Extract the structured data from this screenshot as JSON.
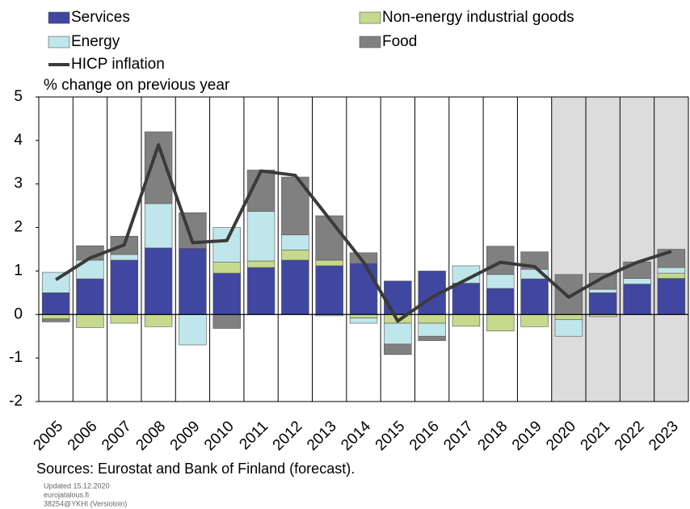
{
  "chart_data": {
    "type": "bar",
    "axis_label": "% change on previous year",
    "categories": [
      "2005",
      "2006",
      "2007",
      "2008",
      "2009",
      "2010",
      "2011",
      "2012",
      "2013",
      "2014",
      "2015",
      "2016",
      "2017",
      "2018",
      "2019",
      "2020",
      "2021",
      "2022",
      "2023"
    ],
    "series": [
      {
        "name": "Services",
        "color": "#3f47a0",
        "values": [
          0.5,
          0.82,
          1.25,
          1.53,
          1.52,
          0.95,
          1.08,
          1.25,
          1.12,
          1.17,
          0.77,
          1.0,
          0.72,
          0.6,
          0.82,
          0,
          0.5,
          0.7,
          0.83
        ]
      },
      {
        "name": "Non-energy industrial goods",
        "color": "#c6d98c",
        "values": [
          -0.1,
          -0.3,
          -0.2,
          -0.28,
          0,
          0.25,
          0.15,
          0.23,
          0.13,
          -0.08,
          -0.2,
          -0.2,
          -0.27,
          -0.38,
          -0.28,
          -0.12,
          -0.05,
          0,
          0.12
        ]
      },
      {
        "name": "Energy",
        "color": "#bfe6ea",
        "values": [
          0.47,
          0.43,
          0.13,
          1.02,
          -0.7,
          0.8,
          1.14,
          0.35,
          -0.03,
          -0.12,
          -0.48,
          -0.3,
          0.4,
          0.32,
          0.22,
          -0.38,
          0.08,
          0.13,
          0.13
        ]
      },
      {
        "name": "Food",
        "color": "#808080",
        "values": [
          -0.07,
          0.33,
          0.42,
          1.65,
          0.82,
          -0.32,
          0.95,
          1.33,
          1.02,
          0.25,
          -0.24,
          -0.1,
          0,
          0.65,
          0.4,
          0.92,
          0.37,
          0.38,
          0.42
        ]
      },
      {
        "name": "HICP inflation",
        "type": "line",
        "color": "#3a3a3a",
        "values": [
          0.8,
          1.3,
          1.6,
          3.9,
          1.65,
          1.7,
          3.3,
          3.2,
          2.2,
          1.2,
          -0.15,
          0.4,
          0.8,
          1.2,
          1.1,
          0.4,
          0.85,
          1.2,
          1.45
        ]
      }
    ],
    "ylim": [
      -2,
      5
    ],
    "yticks": [
      -2,
      -1,
      0,
      1,
      2,
      3,
      4,
      5
    ],
    "shade_from": "2020",
    "source": "Sources: Eurostat and Bank of Finland (forecast).",
    "footnotes": [
      "Updated  15.12.2020",
      "eurojatalous.fi",
      "38254@YKHI  (Versiotoin)"
    ]
  }
}
